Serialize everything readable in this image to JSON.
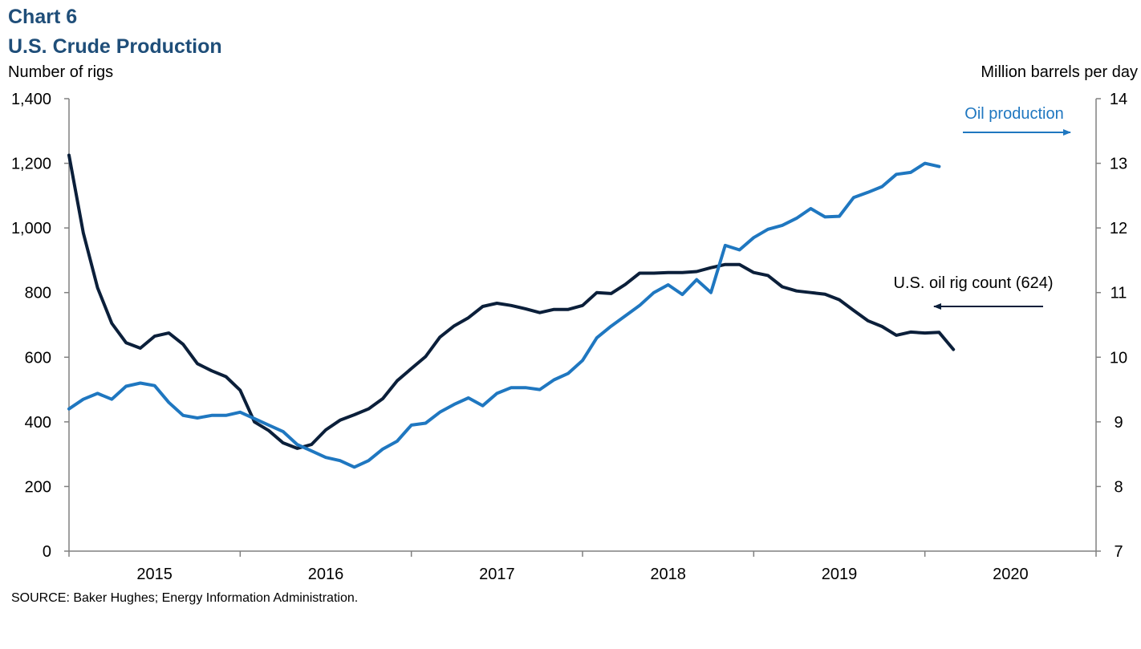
{
  "header": {
    "chart_number": "Chart 6",
    "title": "U.S. Crude Production",
    "left_axis_label": "Number of rigs",
    "right_axis_label": "Million barrels per day"
  },
  "source": "SOURCE:  Baker Hughes;  Energy Information Administration.",
  "colors": {
    "rig_line": "#0b1f3a",
    "production_line": "#1f77c0",
    "axis": "#808080"
  },
  "chart_data": {
    "type": "line",
    "x_start": "2015-01",
    "x_range": [
      "2015-01",
      "2021-01"
    ],
    "x_tick_labels": [
      "2015",
      "2016",
      "2017",
      "2018",
      "2019",
      "2020"
    ],
    "y_left": {
      "range": [
        0,
        1400
      ],
      "ticks": [
        "0",
        "200",
        "400",
        "600",
        "800",
        "1,000",
        "1,200",
        "1,400"
      ]
    },
    "y_right": {
      "range": [
        7,
        14
      ],
      "ticks": [
        "7",
        "8",
        "9",
        "10",
        "11",
        "12",
        "13",
        "14"
      ]
    },
    "series": [
      {
        "name": "U.S. oil rig count (624)",
        "axis": "left",
        "months": [
          "2015-01",
          "2015-02",
          "2015-03",
          "2015-04",
          "2015-05",
          "2015-06",
          "2015-07",
          "2015-08",
          "2015-09",
          "2015-10",
          "2015-11",
          "2015-12",
          "2016-01",
          "2016-02",
          "2016-03",
          "2016-04",
          "2016-05",
          "2016-06",
          "2016-07",
          "2016-08",
          "2016-09",
          "2016-10",
          "2016-11",
          "2016-12",
          "2017-01",
          "2017-02",
          "2017-03",
          "2017-04",
          "2017-05",
          "2017-06",
          "2017-07",
          "2017-08",
          "2017-09",
          "2017-10",
          "2017-11",
          "2017-12",
          "2018-01",
          "2018-02",
          "2018-03",
          "2018-04",
          "2018-05",
          "2018-06",
          "2018-07",
          "2018-08",
          "2018-09",
          "2018-10",
          "2018-11",
          "2018-12",
          "2019-01",
          "2019-02",
          "2019-03",
          "2019-04",
          "2019-05",
          "2019-06",
          "2019-07",
          "2019-08",
          "2019-09",
          "2019-10",
          "2019-11",
          "2019-12",
          "2020-01",
          "2020-02",
          "2020-03"
        ],
        "values": [
          1225,
          985,
          815,
          705,
          645,
          628,
          665,
          675,
          640,
          580,
          558,
          540,
          498,
          400,
          373,
          335,
          318,
          330,
          375,
          405,
          422,
          440,
          472,
          527,
          565,
          602,
          662,
          697,
          722,
          757,
          767,
          760,
          750,
          738,
          748,
          748,
          760,
          800,
          797,
          825,
          860,
          860,
          862,
          862,
          865,
          877,
          887,
          887,
          862,
          853,
          818,
          805,
          800,
          795,
          778,
          745,
          713,
          695,
          668,
          678,
          675,
          677,
          624
        ]
      },
      {
        "name": "Oil production",
        "axis": "right",
        "months": [
          "2015-01",
          "2015-02",
          "2015-03",
          "2015-04",
          "2015-05",
          "2015-06",
          "2015-07",
          "2015-08",
          "2015-09",
          "2015-10",
          "2015-11",
          "2015-12",
          "2016-01",
          "2016-02",
          "2016-03",
          "2016-04",
          "2016-05",
          "2016-06",
          "2016-07",
          "2016-08",
          "2016-09",
          "2016-10",
          "2016-11",
          "2016-12",
          "2017-01",
          "2017-02",
          "2017-03",
          "2017-04",
          "2017-05",
          "2017-06",
          "2017-07",
          "2017-08",
          "2017-09",
          "2017-10",
          "2017-11",
          "2017-12",
          "2018-01",
          "2018-02",
          "2018-03",
          "2018-04",
          "2018-05",
          "2018-06",
          "2018-07",
          "2018-08",
          "2018-09",
          "2018-10",
          "2018-11",
          "2018-12",
          "2019-01",
          "2019-02",
          "2019-03",
          "2019-04",
          "2019-05",
          "2019-06",
          "2019-07",
          "2019-08",
          "2019-09",
          "2019-10",
          "2019-11",
          "2019-12",
          "2020-01",
          "2020-02"
        ],
        "values": [
          9.2,
          9.35,
          9.44,
          9.35,
          9.55,
          9.6,
          9.56,
          9.3,
          9.1,
          9.06,
          9.1,
          9.1,
          9.15,
          9.05,
          8.95,
          8.85,
          8.65,
          8.55,
          8.45,
          8.4,
          8.3,
          8.4,
          8.58,
          8.7,
          8.95,
          8.98,
          9.15,
          9.27,
          9.37,
          9.25,
          9.44,
          9.53,
          9.53,
          9.5,
          9.65,
          9.75,
          9.95,
          10.3,
          10.48,
          10.64,
          10.8,
          11.0,
          11.12,
          10.97,
          11.2,
          11.0,
          11.73,
          11.66,
          11.85,
          11.98,
          12.04,
          12.15,
          12.3,
          12.17,
          12.18,
          12.47,
          12.55,
          12.64,
          12.83,
          12.86,
          13.0,
          12.95
        ]
      }
    ],
    "annotations": [
      {
        "text": "Oil production",
        "points_to": "right axis"
      },
      {
        "text": "U.S. oil rig count (624)",
        "points_to": "left axis"
      }
    ],
    "grid": false,
    "legend": "none"
  }
}
